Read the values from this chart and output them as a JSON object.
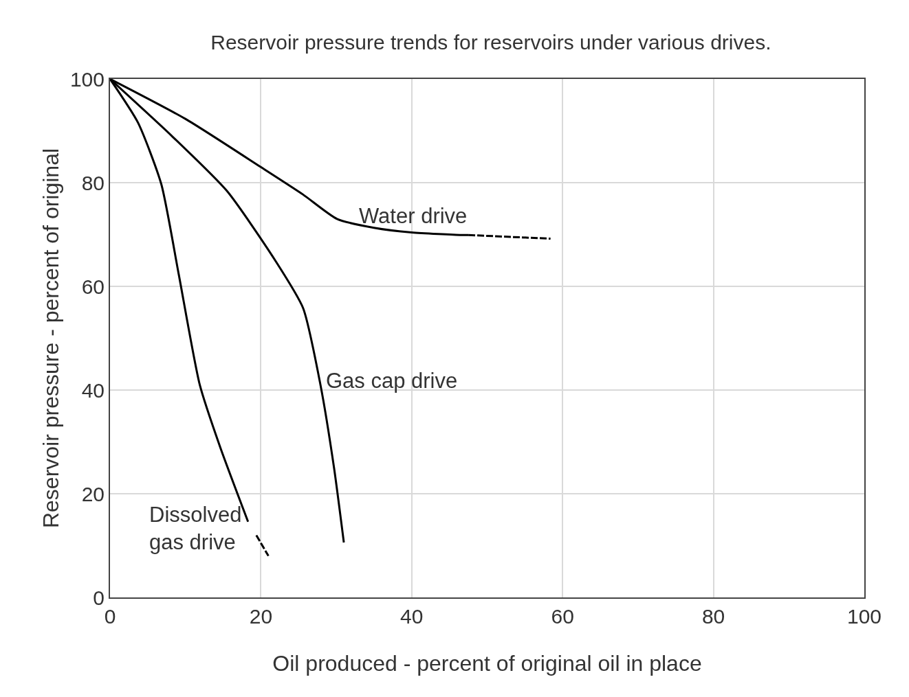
{
  "chart_data": {
    "type": "line",
    "title": "Reservoir pressure trends for reservoirs under various drives.",
    "xlabel": "Oil produced - percent of original oil in place",
    "ylabel": "Reservoir pressure - percent of original",
    "xlim": [
      0,
      100
    ],
    "xticks": [
      0,
      20,
      40,
      60,
      80,
      100
    ],
    "ylim": [
      0,
      100
    ],
    "yticks": [
      0,
      20,
      40,
      60,
      80,
      100
    ],
    "grid": true,
    "legend": false,
    "marker": "none",
    "series": [
      {
        "name": "Water drive",
        "color": "#000000",
        "line_style": "solid",
        "x": [
          0,
          10,
          20,
          25.6,
          30.1,
          35,
          40,
          46.6,
          47.5
        ],
        "values": [
          100,
          92.3,
          83,
          77.7,
          73,
          71.3,
          70.4,
          69.9,
          69.9
        ]
      },
      {
        "color": "#000000",
        "line_style": "dashed",
        "x": [
          47.5,
          58.4
        ],
        "values": [
          69.9,
          69.2
        ]
      },
      {
        "name": "Gas cap drive",
        "color": "#000000",
        "line_style": "solid",
        "x": [
          0,
          8.2,
          15.5,
          21.9,
          25.6,
          27.9,
          29.7,
          31
        ],
        "values": [
          100,
          89,
          78.4,
          65,
          55.8,
          41,
          25,
          10.6
        ]
      },
      {
        "name": "Dissolved\ngas drive",
        "color": "#000000",
        "line_style": "solid",
        "x": [
          0,
          3.7,
          6.8,
          9.1,
          11.9,
          14.6,
          18.3
        ],
        "values": [
          100,
          91.6,
          79.7,
          62.4,
          41,
          29,
          14.6
        ]
      },
      {
        "color": "#000000",
        "line_style": "dashed",
        "x": [
          19.4,
          21
        ],
        "values": [
          12,
          8
        ]
      }
    ]
  }
}
